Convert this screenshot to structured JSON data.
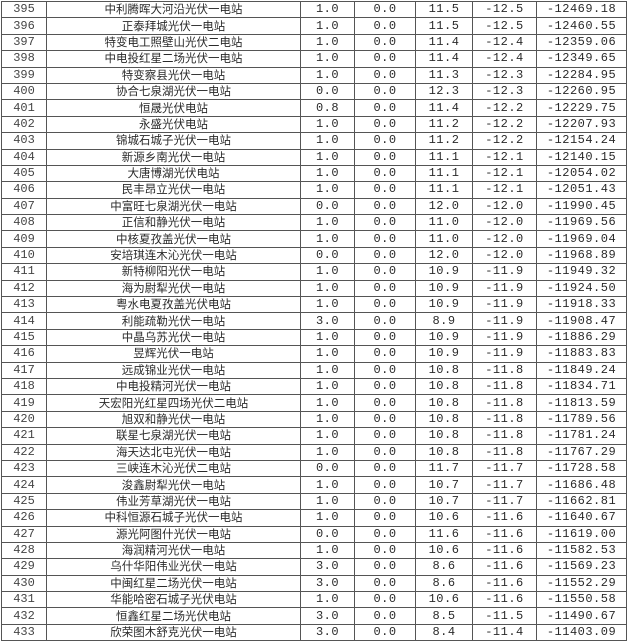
{
  "table": {
    "rows": [
      [
        "395",
        "中利腾晖大河沿光伏一电站",
        "1.0",
        "0.0",
        "11.5",
        "-12.5",
        "-12469.18"
      ],
      [
        "396",
        "正泰拜城光伏一电站",
        "1.0",
        "0.0",
        "11.5",
        "-12.5",
        "-12460.55"
      ],
      [
        "397",
        "特变电工照壁山光伏二电站",
        "1.0",
        "0.0",
        "11.4",
        "-12.4",
        "-12359.06"
      ],
      [
        "398",
        "中电投红星二场光伏一电站",
        "1.0",
        "0.0",
        "11.4",
        "-12.4",
        "-12349.65"
      ],
      [
        "399",
        "特变察县光伏一电站",
        "1.0",
        "0.0",
        "11.3",
        "-12.3",
        "-12284.95"
      ],
      [
        "400",
        "协合七泉湖光伏一电站",
        "0.0",
        "0.0",
        "12.3",
        "-12.3",
        "-12260.95"
      ],
      [
        "401",
        "恒晟光伏电站",
        "0.8",
        "0.0",
        "11.4",
        "-12.2",
        "-12229.75"
      ],
      [
        "402",
        "永盛光伏电站",
        "1.0",
        "0.0",
        "11.2",
        "-12.2",
        "-12207.93"
      ],
      [
        "403",
        "锦城石城子光伏一电站",
        "1.0",
        "0.0",
        "11.2",
        "-12.2",
        "-12154.24"
      ],
      [
        "404",
        "新源乡南光伏一电站",
        "1.0",
        "0.0",
        "11.1",
        "-12.1",
        "-12140.15"
      ],
      [
        "405",
        "大唐博湖光伏电站",
        "1.0",
        "0.0",
        "11.1",
        "-12.1",
        "-12054.02"
      ],
      [
        "406",
        "民丰昂立光伏一电站",
        "1.0",
        "0.0",
        "11.1",
        "-12.1",
        "-12051.43"
      ],
      [
        "407",
        "中富旺七泉湖光伏一电站",
        "0.0",
        "0.0",
        "12.0",
        "-12.0",
        "-11990.45"
      ],
      [
        "408",
        "正信和静光伏一电站",
        "1.0",
        "0.0",
        "11.0",
        "-12.0",
        "-11969.56"
      ],
      [
        "409",
        "中核夏孜盖光伏一电站",
        "1.0",
        "0.0",
        "11.0",
        "-12.0",
        "-11969.04"
      ],
      [
        "410",
        "安培琪连木沁光伏一电站",
        "0.0",
        "0.0",
        "12.0",
        "-12.0",
        "-11968.89"
      ],
      [
        "411",
        "新特柳阳光伏一电站",
        "1.0",
        "0.0",
        "10.9",
        "-11.9",
        "-11949.32"
      ],
      [
        "412",
        "海为尉犁光伏一电站",
        "1.0",
        "0.0",
        "10.9",
        "-11.9",
        "-11924.50"
      ],
      [
        "413",
        "粤水电夏孜盖光伏电站",
        "1.0",
        "0.0",
        "10.9",
        "-11.9",
        "-11918.33"
      ],
      [
        "414",
        "利能疏勒光伏一电站",
        "3.0",
        "0.0",
        "8.9",
        "-11.9",
        "-11908.47"
      ],
      [
        "415",
        "中晶乌苏光伏一电站",
        "1.0",
        "0.0",
        "10.9",
        "-11.9",
        "-11886.29"
      ],
      [
        "416",
        "昱辉光伏一电站",
        "1.0",
        "0.0",
        "10.9",
        "-11.9",
        "-11883.83"
      ],
      [
        "417",
        "远成锦业光伏一电站",
        "1.0",
        "0.0",
        "10.8",
        "-11.8",
        "-11849.24"
      ],
      [
        "418",
        "中电投精河光伏一电站",
        "1.0",
        "0.0",
        "10.8",
        "-11.8",
        "-11834.71"
      ],
      [
        "419",
        "天宏阳光红星四场光伏二电站",
        "1.0",
        "0.0",
        "10.8",
        "-11.8",
        "-11813.59"
      ],
      [
        "420",
        "旭双和静光伏一电站",
        "1.0",
        "0.0",
        "10.8",
        "-11.8",
        "-11789.56"
      ],
      [
        "421",
        "联星七泉湖光伏一电站",
        "1.0",
        "0.0",
        "10.8",
        "-11.8",
        "-11781.24"
      ],
      [
        "422",
        "海天达北屯光伏一电站",
        "1.0",
        "0.0",
        "10.8",
        "-11.8",
        "-11767.29"
      ],
      [
        "423",
        "三峡连木沁光伏二电站",
        "0.0",
        "0.0",
        "11.7",
        "-11.7",
        "-11728.58"
      ],
      [
        "424",
        "浚鑫尉犁光伏一电站",
        "1.0",
        "0.0",
        "10.7",
        "-11.7",
        "-11686.48"
      ],
      [
        "425",
        "伟业芳草湖光伏一电站",
        "1.0",
        "0.0",
        "10.7",
        "-11.7",
        "-11662.81"
      ],
      [
        "426",
        "中科恒源石城子光伏一电站",
        "1.0",
        "0.0",
        "10.6",
        "-11.6",
        "-11640.67"
      ],
      [
        "427",
        "源光阿图什光伏一电站",
        "0.0",
        "0.0",
        "11.6",
        "-11.6",
        "-11619.00"
      ],
      [
        "428",
        "海润精河光伏一电站",
        "1.0",
        "0.0",
        "10.6",
        "-11.6",
        "-11582.53"
      ],
      [
        "429",
        "乌什华阳伟业光伏一电站",
        "3.0",
        "0.0",
        "8.6",
        "-11.6",
        "-11569.23"
      ],
      [
        "430",
        "中闽红星二场光伏一电站",
        "3.0",
        "0.0",
        "8.6",
        "-11.6",
        "-11552.29"
      ],
      [
        "431",
        "华能哈密石城子光伏电站",
        "1.0",
        "0.0",
        "10.6",
        "-11.6",
        "-11550.58"
      ],
      [
        "432",
        "恒鑫红星二场光伏电站",
        "3.0",
        "0.0",
        "8.5",
        "-11.5",
        "-11490.67"
      ],
      [
        "433",
        "欣荣图木舒克光伏一电站",
        "3.0",
        "0.0",
        "8.4",
        "-11.4",
        "-11403.09"
      ]
    ]
  }
}
